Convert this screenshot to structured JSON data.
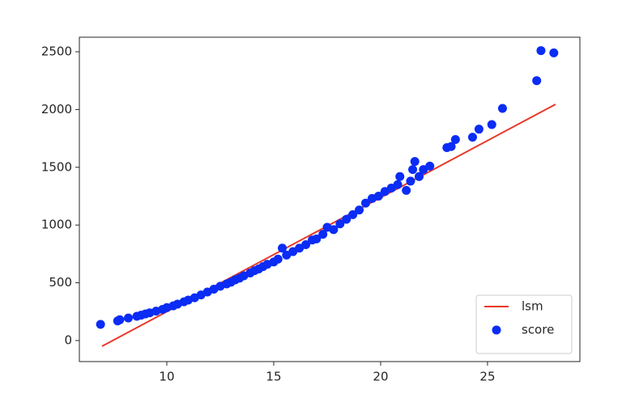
{
  "chart_data": {
    "type": "scatter",
    "xlim": [
      5.91,
      29.32
    ],
    "ylim": [
      -182,
      2626
    ],
    "xticks": [
      10,
      15,
      20,
      25
    ],
    "yticks": [
      0,
      500,
      1000,
      1500,
      2000,
      2500
    ],
    "legend": "lower right",
    "series": [
      {
        "name": "lsm",
        "type": "line",
        "color": "#e8392a",
        "x": [
          6.97,
          28.18
        ],
        "values": [
          -49,
          2045
        ]
      },
      {
        "name": "score",
        "type": "scatter",
        "color": "#0a2cf5",
        "x": [
          6.9,
          7.7,
          7.8,
          8.2,
          8.6,
          8.8,
          9.0,
          9.2,
          9.5,
          9.8,
          10.0,
          10.3,
          10.5,
          10.8,
          11.0,
          11.3,
          11.6,
          11.9,
          12.2,
          12.5,
          12.8,
          13.0,
          13.2,
          13.4,
          13.6,
          13.9,
          14.1,
          14.3,
          14.5,
          14.7,
          15.0,
          15.2,
          15.4,
          15.6,
          15.9,
          16.2,
          16.5,
          16.8,
          17.0,
          17.3,
          17.5,
          17.8,
          18.1,
          18.4,
          18.7,
          19.0,
          19.3,
          19.6,
          19.9,
          20.2,
          20.5,
          20.8,
          20.9,
          21.2,
          21.4,
          21.5,
          21.6,
          21.8,
          22.0,
          22.3,
          23.1,
          23.3,
          23.5,
          24.3,
          24.6,
          25.2,
          25.7,
          27.3,
          27.5,
          28.1
        ],
        "values": [
          140,
          170,
          180,
          195,
          210,
          220,
          230,
          240,
          255,
          270,
          285,
          300,
          315,
          335,
          350,
          370,
          395,
          420,
          445,
          470,
          490,
          505,
          525,
          540,
          560,
          585,
          605,
          620,
          640,
          660,
          680,
          705,
          800,
          740,
          770,
          800,
          830,
          870,
          880,
          920,
          980,
          960,
          1010,
          1050,
          1090,
          1130,
          1190,
          1230,
          1250,
          1290,
          1320,
          1350,
          1420,
          1300,
          1380,
          1480,
          1550,
          1420,
          1480,
          1510,
          1670,
          1680,
          1740,
          1760,
          1830,
          1870,
          2010,
          2250,
          2510,
          2490
        ]
      }
    ]
  }
}
